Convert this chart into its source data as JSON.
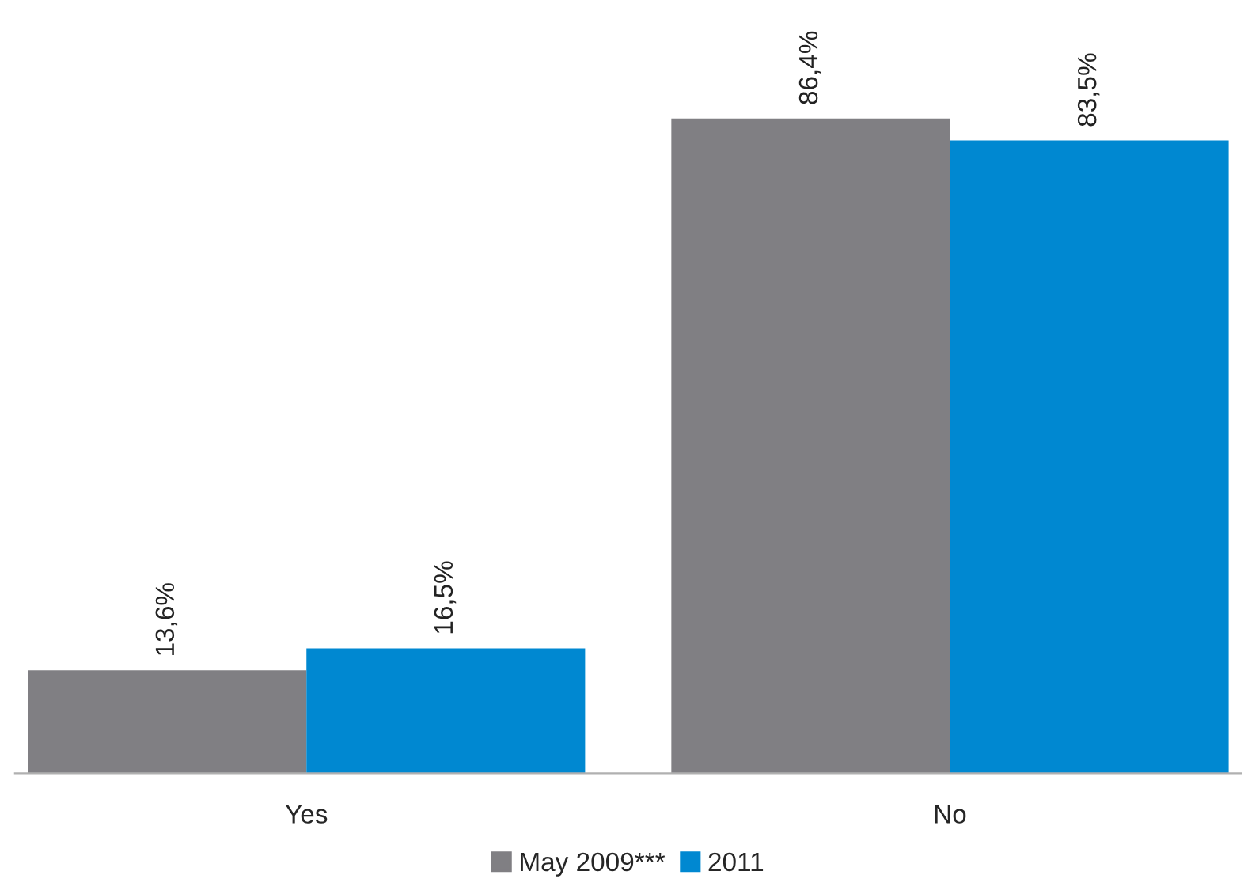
{
  "chart_data": {
    "type": "bar",
    "categories": [
      "Yes",
      "No"
    ],
    "series": [
      {
        "name": "May 2009***",
        "color": "#807f83",
        "values": [
          13.6,
          86.4
        ],
        "value_labels": [
          "13,6%",
          "86,4%"
        ]
      },
      {
        "name": "2011",
        "color": "#0088d1",
        "values": [
          16.5,
          83.5
        ],
        "value_labels": [
          "16,5%",
          "83,5%"
        ]
      }
    ],
    "legend": "bottom",
    "grid": false,
    "tick_labels": "x"
  }
}
